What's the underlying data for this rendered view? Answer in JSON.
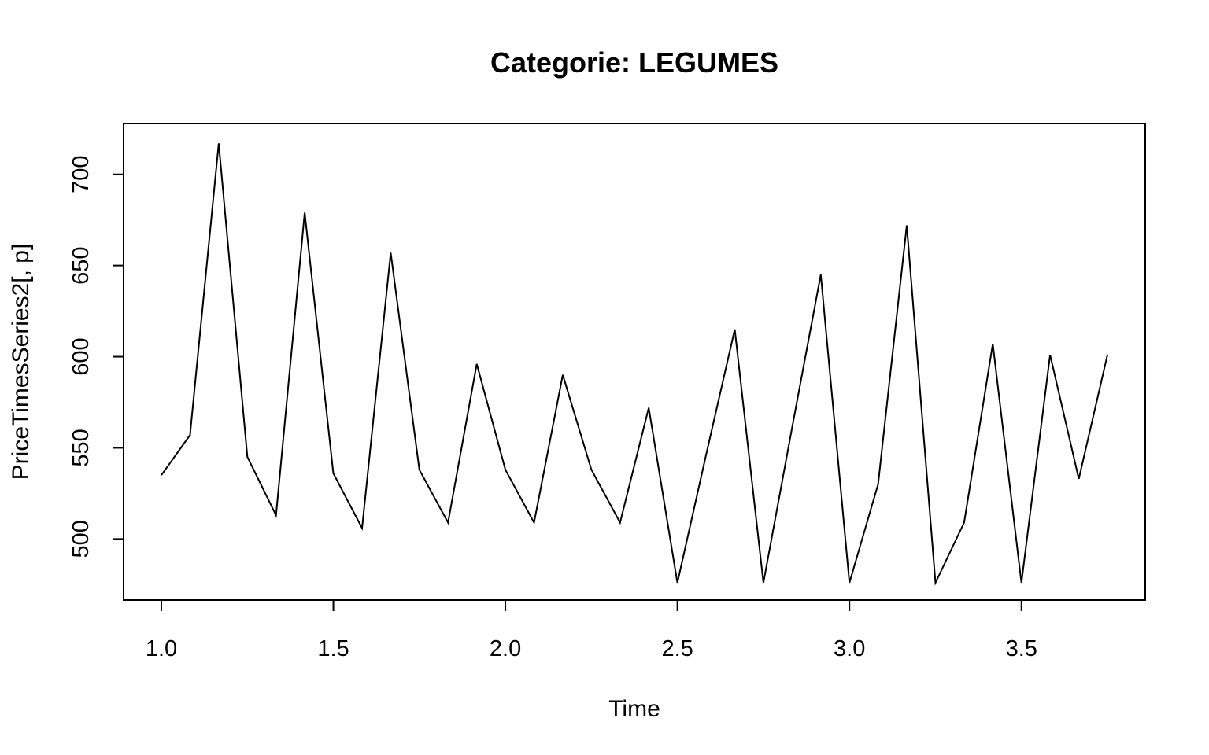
{
  "chart_data": {
    "type": "line",
    "title": "Categorie: LEGUMES",
    "xlabel": "Time",
    "ylabel": "PriceTimesSeries2[, p]",
    "xlim": [
      1.0,
      3.75
    ],
    "ylim": [
      476,
      718
    ],
    "x_ticks": [
      1.0,
      1.5,
      2.0,
      2.5,
      3.0,
      3.5
    ],
    "x_tick_labels": [
      "1.0",
      "1.5",
      "2.0",
      "2.5",
      "3.0",
      "3.5"
    ],
    "y_ticks": [
      500,
      550,
      600,
      650,
      700
    ],
    "y_tick_labels": [
      "500",
      "550",
      "600",
      "650",
      "700"
    ],
    "grid": false,
    "line_color": "#000000",
    "series": [
      {
        "x": [
          1.0,
          1.0833,
          1.1667,
          1.25,
          1.3333,
          1.4167,
          1.5,
          1.5833,
          1.6667,
          1.75,
          1.8333,
          1.9167,
          2.0,
          2.0833,
          2.1667,
          2.25,
          2.3333,
          2.4167,
          2.5,
          2.5833,
          2.6667,
          2.75,
          2.8333,
          2.9167,
          3.0,
          3.0833,
          3.1667,
          3.25,
          3.3333,
          3.4167,
          3.5,
          3.5833,
          3.6667,
          3.75
        ],
        "values": [
          535,
          557,
          717,
          545,
          513,
          679,
          536,
          506,
          657,
          538,
          509,
          596,
          538,
          509,
          590,
          538,
          509,
          572,
          476,
          546,
          615,
          476,
          561,
          645,
          476,
          530,
          672,
          476,
          509,
          607,
          476,
          601,
          533,
          601
        ]
      }
    ]
  }
}
